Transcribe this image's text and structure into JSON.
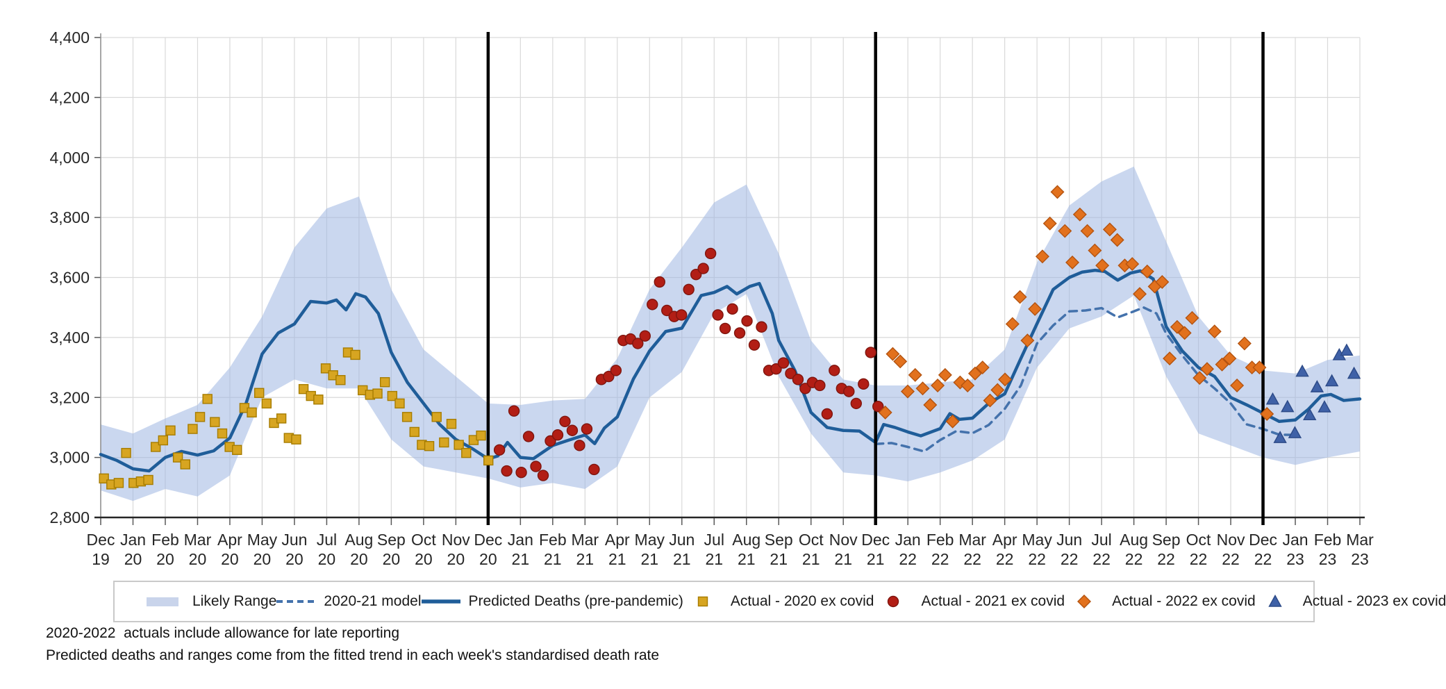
{
  "footnotes": [
    "2020-2022  actuals include allowance for late reporting",
    "Predicted deaths and ranges come from the fitted trend in each week's standardised death rate"
  ],
  "legend": {
    "items": [
      {
        "label": "Likely Range",
        "marker": "band",
        "color": "#c9d4eb",
        "edge": "#c9d4eb"
      },
      {
        "label": "2020-21 model",
        "marker": "dash",
        "color": "#4472ac",
        "edge": "#4472ac"
      },
      {
        "label": "Predicted Deaths (pre-pandemic)",
        "marker": "line",
        "color": "#1f5d99",
        "edge": "#1f5d99"
      },
      {
        "label": "Actual - 2020 ex covid",
        "marker": "square",
        "color": "#d7a521",
        "edge": "#a67c00"
      },
      {
        "label": "Actual - 2021 ex covid",
        "marker": "circle",
        "color": "#b21e15",
        "edge": "#7e150e"
      },
      {
        "label": "Actual - 2022 ex covid",
        "marker": "diamond",
        "color": "#e2711d",
        "edge": "#b35310"
      },
      {
        "label": "Actual - 2023 ex covid",
        "marker": "triangle",
        "color": "#3f61a7",
        "edge": "#2c4a87"
      }
    ]
  },
  "chart_data": {
    "type": "line",
    "title": "",
    "xlabel": "",
    "ylabel": "",
    "grid": true,
    "legend_position": "bottom",
    "y_axis": {
      "min": 2800,
      "max": 4400,
      "step": 200,
      "tick_labels": [
        "2,800",
        "3,000",
        "3,200",
        "3,400",
        "3,600",
        "3,800",
        "4,000",
        "4,200",
        "4,400"
      ]
    },
    "x_axis": {
      "months": [
        "Dec",
        "Jan",
        "Feb",
        "Mar",
        "Apr",
        "May",
        "Jun",
        "Jul",
        "Aug",
        "Sep",
        "Oct",
        "Nov",
        "Dec",
        "Jan",
        "Feb",
        "Mar",
        "Apr",
        "May",
        "Jun",
        "Jul",
        "Aug",
        "Sep",
        "Oct",
        "Nov",
        "Dec",
        "Jan",
        "Feb",
        "Mar",
        "Apr",
        "May",
        "Jun",
        "Jul",
        "Aug",
        "Sep",
        "Oct",
        "Nov",
        "Dec",
        "Jan",
        "Feb",
        "Mar"
      ],
      "years": [
        "19",
        "20",
        "20",
        "20",
        "20",
        "20",
        "20",
        "20",
        "20",
        "20",
        "20",
        "20",
        "20",
        "21",
        "21",
        "21",
        "21",
        "21",
        "21",
        "21",
        "21",
        "21",
        "21",
        "21",
        "21",
        "22",
        "22",
        "22",
        "22",
        "22",
        "22",
        "22",
        "22",
        "22",
        "22",
        "22",
        "22",
        "23",
        "23",
        "23"
      ]
    },
    "separators_at_month_index": [
      12,
      24,
      36
    ],
    "band": {
      "name": "Likely Range",
      "fill": "#9fb6e2",
      "fill_opacity": 0.55,
      "x_start": 0,
      "x_step": 1,
      "upper": [
        3110,
        3080,
        3130,
        3175,
        3300,
        3470,
        3700,
        3830,
        3870,
        3560,
        3360,
        3270,
        3180,
        3175,
        3190,
        3195,
        3330,
        3560,
        3700,
        3850,
        3910,
        3680,
        3390,
        3260,
        3240,
        3240,
        3250,
        3260,
        3360,
        3650,
        3840,
        3920,
        3970,
        3720,
        3470,
        3340,
        3290,
        3280,
        3325,
        3340
      ],
      "lower": [
        2890,
        2855,
        2895,
        2870,
        2940,
        3200,
        3260,
        3230,
        3230,
        3060,
        2970,
        2950,
        2930,
        2900,
        2915,
        2895,
        2970,
        3200,
        3285,
        3480,
        3545,
        3270,
        3080,
        2950,
        2940,
        2920,
        2950,
        2990,
        3060,
        3300,
        3430,
        3470,
        3540,
        3270,
        3080,
        3040,
        3000,
        2975,
        3000,
        3020
      ]
    },
    "lines": [
      {
        "name": "2020-21 model",
        "style": "dashed",
        "color": "#4472ac",
        "width": 3.5,
        "x": [
          24,
          24.5,
          25,
          25.5,
          26,
          26.5,
          27,
          27.5,
          28,
          28.5,
          29,
          29.5,
          30,
          30.5,
          31,
          31.5,
          32,
          32.3,
          32.7,
          33,
          33.5,
          34,
          34.5,
          35,
          35.5,
          36,
          36.5,
          37
        ],
        "values": [
          3045,
          3048,
          3035,
          3020,
          3058,
          3088,
          3081,
          3108,
          3162,
          3240,
          3380,
          3440,
          3487,
          3490,
          3498,
          3467,
          3487,
          3500,
          3480,
          3413,
          3340,
          3274,
          3230,
          3180,
          3110,
          3095,
          3076,
          3075
        ]
      },
      {
        "name": "Predicted Deaths (pre-pandemic)",
        "style": "solid",
        "color": "#1f5d99",
        "width": 4.5,
        "x": [
          0,
          0.5,
          1,
          1.5,
          2,
          2.5,
          3,
          3.5,
          4,
          4.5,
          5,
          5.5,
          6,
          6.5,
          7,
          7.3,
          7.6,
          7.9,
          8.2,
          8.6,
          9,
          9.5,
          10,
          10.5,
          11,
          11.5,
          12,
          12.3,
          12.6,
          13,
          13.4,
          14,
          14.5,
          15,
          15.3,
          15.6,
          16,
          16.5,
          17,
          17.5,
          18,
          18.6,
          19,
          19.4,
          19.7,
          20.1,
          20.4,
          20.8,
          21,
          21.5,
          22,
          22.5,
          23,
          23.5,
          24,
          24.25,
          24.6,
          25,
          25.4,
          26,
          26.3,
          26.6,
          27,
          27.5,
          28,
          28.5,
          29,
          29.5,
          30,
          30.4,
          30.8,
          31.1,
          31.5,
          31.9,
          32.2,
          32.6,
          33,
          33.5,
          34,
          34.5,
          35,
          35.5,
          36,
          36.5,
          37,
          37.4,
          37.8,
          38.1,
          38.5,
          39
        ],
        "values": [
          3010,
          2990,
          2962,
          2955,
          3000,
          3020,
          3008,
          3022,
          3065,
          3180,
          3345,
          3415,
          3445,
          3520,
          3515,
          3525,
          3492,
          3546,
          3535,
          3480,
          3350,
          3250,
          3180,
          3110,
          3060,
          3030,
          2995,
          3005,
          3050,
          3000,
          2996,
          3040,
          3058,
          3075,
          3046,
          3098,
          3135,
          3262,
          3355,
          3420,
          3431,
          3540,
          3550,
          3570,
          3545,
          3570,
          3580,
          3480,
          3390,
          3290,
          3150,
          3100,
          3090,
          3088,
          3050,
          3110,
          3100,
          3085,
          3072,
          3096,
          3146,
          3127,
          3131,
          3180,
          3212,
          3330,
          3446,
          3560,
          3600,
          3618,
          3624,
          3620,
          3591,
          3615,
          3622,
          3595,
          3436,
          3355,
          3300,
          3270,
          3200,
          3175,
          3148,
          3120,
          3125,
          3160,
          3205,
          3210,
          3190,
          3195
        ]
      }
    ],
    "scatter": [
      {
        "name": "Actual - 2020 ex covid",
        "marker": "square",
        "color": "#d7a521",
        "edge": "#a67c00",
        "x_start": 0.1,
        "x_step": 0.229,
        "values": [
          2930,
          2910,
          2915,
          3015,
          2915,
          2920,
          2925,
          3035,
          3057,
          3090,
          3000,
          2977,
          3095,
          3135,
          3195,
          3118,
          3080,
          3035,
          3025,
          3165,
          3150,
          3215,
          3180,
          3115,
          3130,
          3065,
          3060,
          3228,
          3205,
          3193,
          3297,
          3274,
          3258,
          3350,
          3342,
          3224,
          3209,
          3213,
          3251,
          3205,
          3180,
          3135,
          3085,
          3042,
          3038,
          3135,
          3050,
          3112,
          3042,
          3015,
          3058,
          3073,
          2990
        ]
      },
      {
        "name": "Actual - 2021 ex covid",
        "marker": "circle",
        "color": "#b21e15",
        "edge": "#7e150e",
        "x_start": 12.35,
        "x_step": 0.2255,
        "values": [
          3025,
          2955,
          3155,
          2950,
          3070,
          2970,
          2940,
          3055,
          3075,
          3120,
          3090,
          3040,
          3095,
          2960,
          3260,
          3270,
          3290,
          3390,
          3395,
          3380,
          3405,
          3510,
          3585,
          3490,
          3470,
          3475,
          3560,
          3610,
          3630,
          3680,
          3475,
          3430,
          3495,
          3415,
          3455,
          3375,
          3435,
          3290,
          3295,
          3315,
          3280,
          3260,
          3230,
          3250,
          3240,
          3145,
          3290,
          3230,
          3220,
          3180,
          3245,
          3350,
          3170
        ]
      },
      {
        "name": "Actual - 2022 ex covid",
        "marker": "diamond",
        "color": "#e2711d",
        "edge": "#b35310",
        "x_start": 24.3,
        "x_step": 0.2318,
        "values": [
          3150,
          3345,
          3320,
          3220,
          3275,
          3230,
          3175,
          3240,
          3275,
          3120,
          3250,
          3240,
          3280,
          3300,
          3190,
          3225,
          3260,
          3445,
          3535,
          3390,
          3495,
          3670,
          3780,
          3885,
          3755,
          3650,
          3810,
          3755,
          3690,
          3640,
          3760,
          3725,
          3640,
          3645,
          3545,
          3620,
          3570,
          3585,
          3330,
          3435,
          3415,
          3465,
          3265,
          3295,
          3420,
          3310,
          3330,
          3240,
          3380,
          3300,
          3300,
          3145
        ]
      },
      {
        "name": "Actual - 2023 ex covid",
        "marker": "triangle",
        "color": "#3f61a7",
        "edge": "#2c4a87",
        "x_start": 36.3,
        "x_step": 0.229,
        "values": [
          3194,
          3066,
          3169,
          3082,
          3287,
          3142,
          3235,
          3168,
          3255,
          3342,
          3357,
          3280
        ]
      }
    ]
  }
}
